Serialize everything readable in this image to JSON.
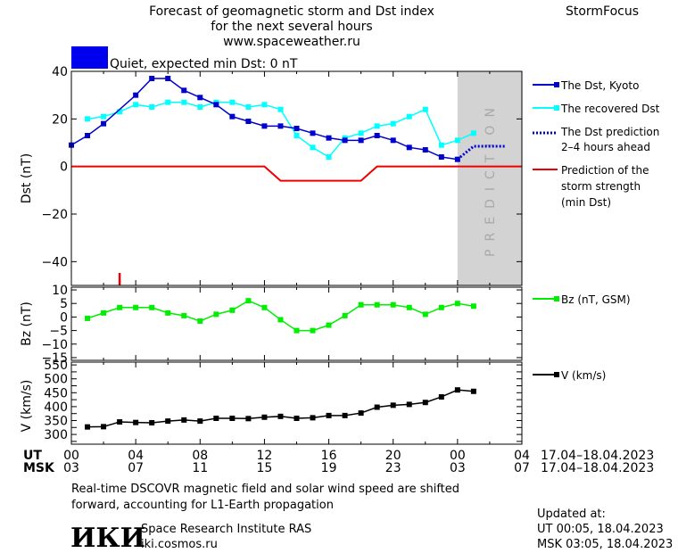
{
  "header": {
    "title_line1": "Forecast of geomagnetic storm and Dst index",
    "title_line2": "for the next several hours",
    "url": "www.spaceweather.ru",
    "brand": "StormFocus"
  },
  "status": {
    "label": "Quiet, expected min Dst: 0 nT",
    "color": "#0000ee"
  },
  "prediction_watermark": "PREDICTION",
  "colors": {
    "dst": "#0000cc",
    "recovered": "#00ffff",
    "prediction": "#0000cc",
    "storm": "#ee0000",
    "bz": "#00ee00",
    "v": "#000000",
    "prediction_band": "#d3d3d3"
  },
  "legend": {
    "dst_kyoto": "The Dst, Kyoto",
    "recovered": "The recovered Dst",
    "pred_line1": "The Dst prediction",
    "pred_line2": "2–4 hours ahead",
    "storm_line1": "Prediction of the",
    "storm_line2": "storm strength",
    "storm_line3": "(min Dst)",
    "bz": "Bz (nT, GSM)",
    "v": "V (km/s)"
  },
  "axes": {
    "time_row_ut_label": "UT",
    "time_row_msk_label": "MSK",
    "ut_ticks": [
      "00",
      "04",
      "08",
      "12",
      "16",
      "20",
      "00",
      "04"
    ],
    "msk_ticks": [
      "03",
      "07",
      "11",
      "15",
      "19",
      "23",
      "03",
      "07"
    ],
    "date_range_ut": "17.04–18.04.2023",
    "date_range_msk": "17.04–18.04.2023"
  },
  "footer": {
    "note_line1": "Real-time DSCOVR magnetic field and solar wind speed are shifted",
    "note_line2": "forward, accounting for L1-Earth propagation",
    "updated_label": "Updated at:",
    "updated_ut": "UT   00:05, 18.04.2023",
    "updated_msk": "MSK 03:05, 18.04.2023",
    "logo_text": "ИКИ",
    "institute": "Space Research Institute RAS",
    "site": "iki.cosmos.ru"
  },
  "chart_data": [
    {
      "type": "line",
      "panel": "dst",
      "ylabel": "Dst (nT)",
      "xlim": [
        0,
        28
      ],
      "ylim": [
        -50,
        40
      ],
      "yticks": [
        -40,
        -20,
        0,
        20,
        40
      ],
      "x_unit": "hours since 17.04.2023 00 UT",
      "prediction_start": 24,
      "series": [
        {
          "name": "The Dst, Kyoto",
          "gaps_after_x": [
            3
          ],
          "x": [
            0,
            1,
            2,
            4,
            5,
            6,
            7,
            8,
            9,
            10,
            11,
            12,
            13,
            14,
            15,
            16,
            17,
            18,
            19,
            20,
            21,
            22,
            23,
            24
          ],
          "values": [
            9,
            13,
            18,
            30,
            37,
            37,
            32,
            29,
            26,
            21,
            19,
            17,
            17,
            16,
            14,
            12,
            11,
            11,
            13,
            11,
            8,
            7,
            4,
            3
          ]
        },
        {
          "name": "The recovered Dst",
          "x": [
            1,
            2,
            3,
            4,
            5,
            6,
            7,
            8,
            9,
            10,
            11,
            12,
            13,
            14,
            15,
            16,
            17,
            18,
            19,
            20,
            21,
            22,
            23,
            24,
            25
          ],
          "values": [
            20,
            21,
            23,
            26,
            25,
            27,
            27,
            25,
            27,
            27,
            25,
            26,
            24,
            13,
            8,
            4,
            12,
            14,
            17,
            18,
            21,
            24,
            9,
            11,
            14
          ]
        },
        {
          "name": "The Dst prediction 2–4 hours ahead",
          "style": "dotted",
          "x": [
            24,
            25,
            26,
            27
          ],
          "values": [
            3,
            8.5,
            8.5,
            8.5
          ]
        },
        {
          "name": "Prediction of the storm strength (min Dst)",
          "style": "step",
          "x": [
            0,
            12,
            13,
            18,
            19,
            28
          ],
          "values": [
            0,
            0,
            -6,
            -6,
            0,
            0
          ]
        }
      ],
      "annotations": [
        {
          "type": "red_tick",
          "x": 3
        }
      ]
    },
    {
      "type": "line",
      "panel": "bz",
      "ylabel": "Bz (nT)",
      "xlim": [
        0,
        28
      ],
      "ylim": [
        -16,
        11
      ],
      "yticks": [
        -15,
        -10,
        -5,
        0,
        5,
        10
      ],
      "series": [
        {
          "name": "Bz (nT, GSM)",
          "x": [
            1,
            2,
            3,
            4,
            5,
            6,
            7,
            8,
            9,
            10,
            11,
            12,
            13,
            14,
            15,
            16,
            17,
            18,
            19,
            20,
            21,
            22,
            23,
            24,
            25
          ],
          "values": [
            -0.5,
            1.5,
            3.5,
            3.5,
            3.5,
            1.5,
            0.5,
            -1.5,
            1,
            2.5,
            6,
            3.5,
            -1,
            -5,
            -5,
            -3,
            0.5,
            4.5,
            4.5,
            4.5,
            3.5,
            1,
            3.5,
            5,
            4
          ]
        }
      ]
    },
    {
      "type": "line",
      "panel": "v",
      "ylabel": "V (km/s)",
      "xlim": [
        0,
        28
      ],
      "ylim": [
        265,
        560
      ],
      "yticks": [
        300,
        350,
        400,
        450,
        500,
        550
      ],
      "extra_ticks": [
        275,
        325,
        375,
        425,
        475,
        525
      ],
      "series": [
        {
          "name": "V (km/s)",
          "x": [
            1,
            2,
            3,
            4,
            5,
            6,
            7,
            8,
            9,
            10,
            11,
            12,
            13,
            14,
            15,
            16,
            17,
            18,
            19,
            20,
            21,
            22,
            23,
            24,
            25
          ],
          "values": [
            327,
            328,
            345,
            343,
            342,
            348,
            352,
            348,
            358,
            358,
            357,
            362,
            365,
            358,
            360,
            368,
            368,
            377,
            398,
            405,
            408,
            415,
            435,
            460,
            455
          ]
        }
      ]
    }
  ]
}
